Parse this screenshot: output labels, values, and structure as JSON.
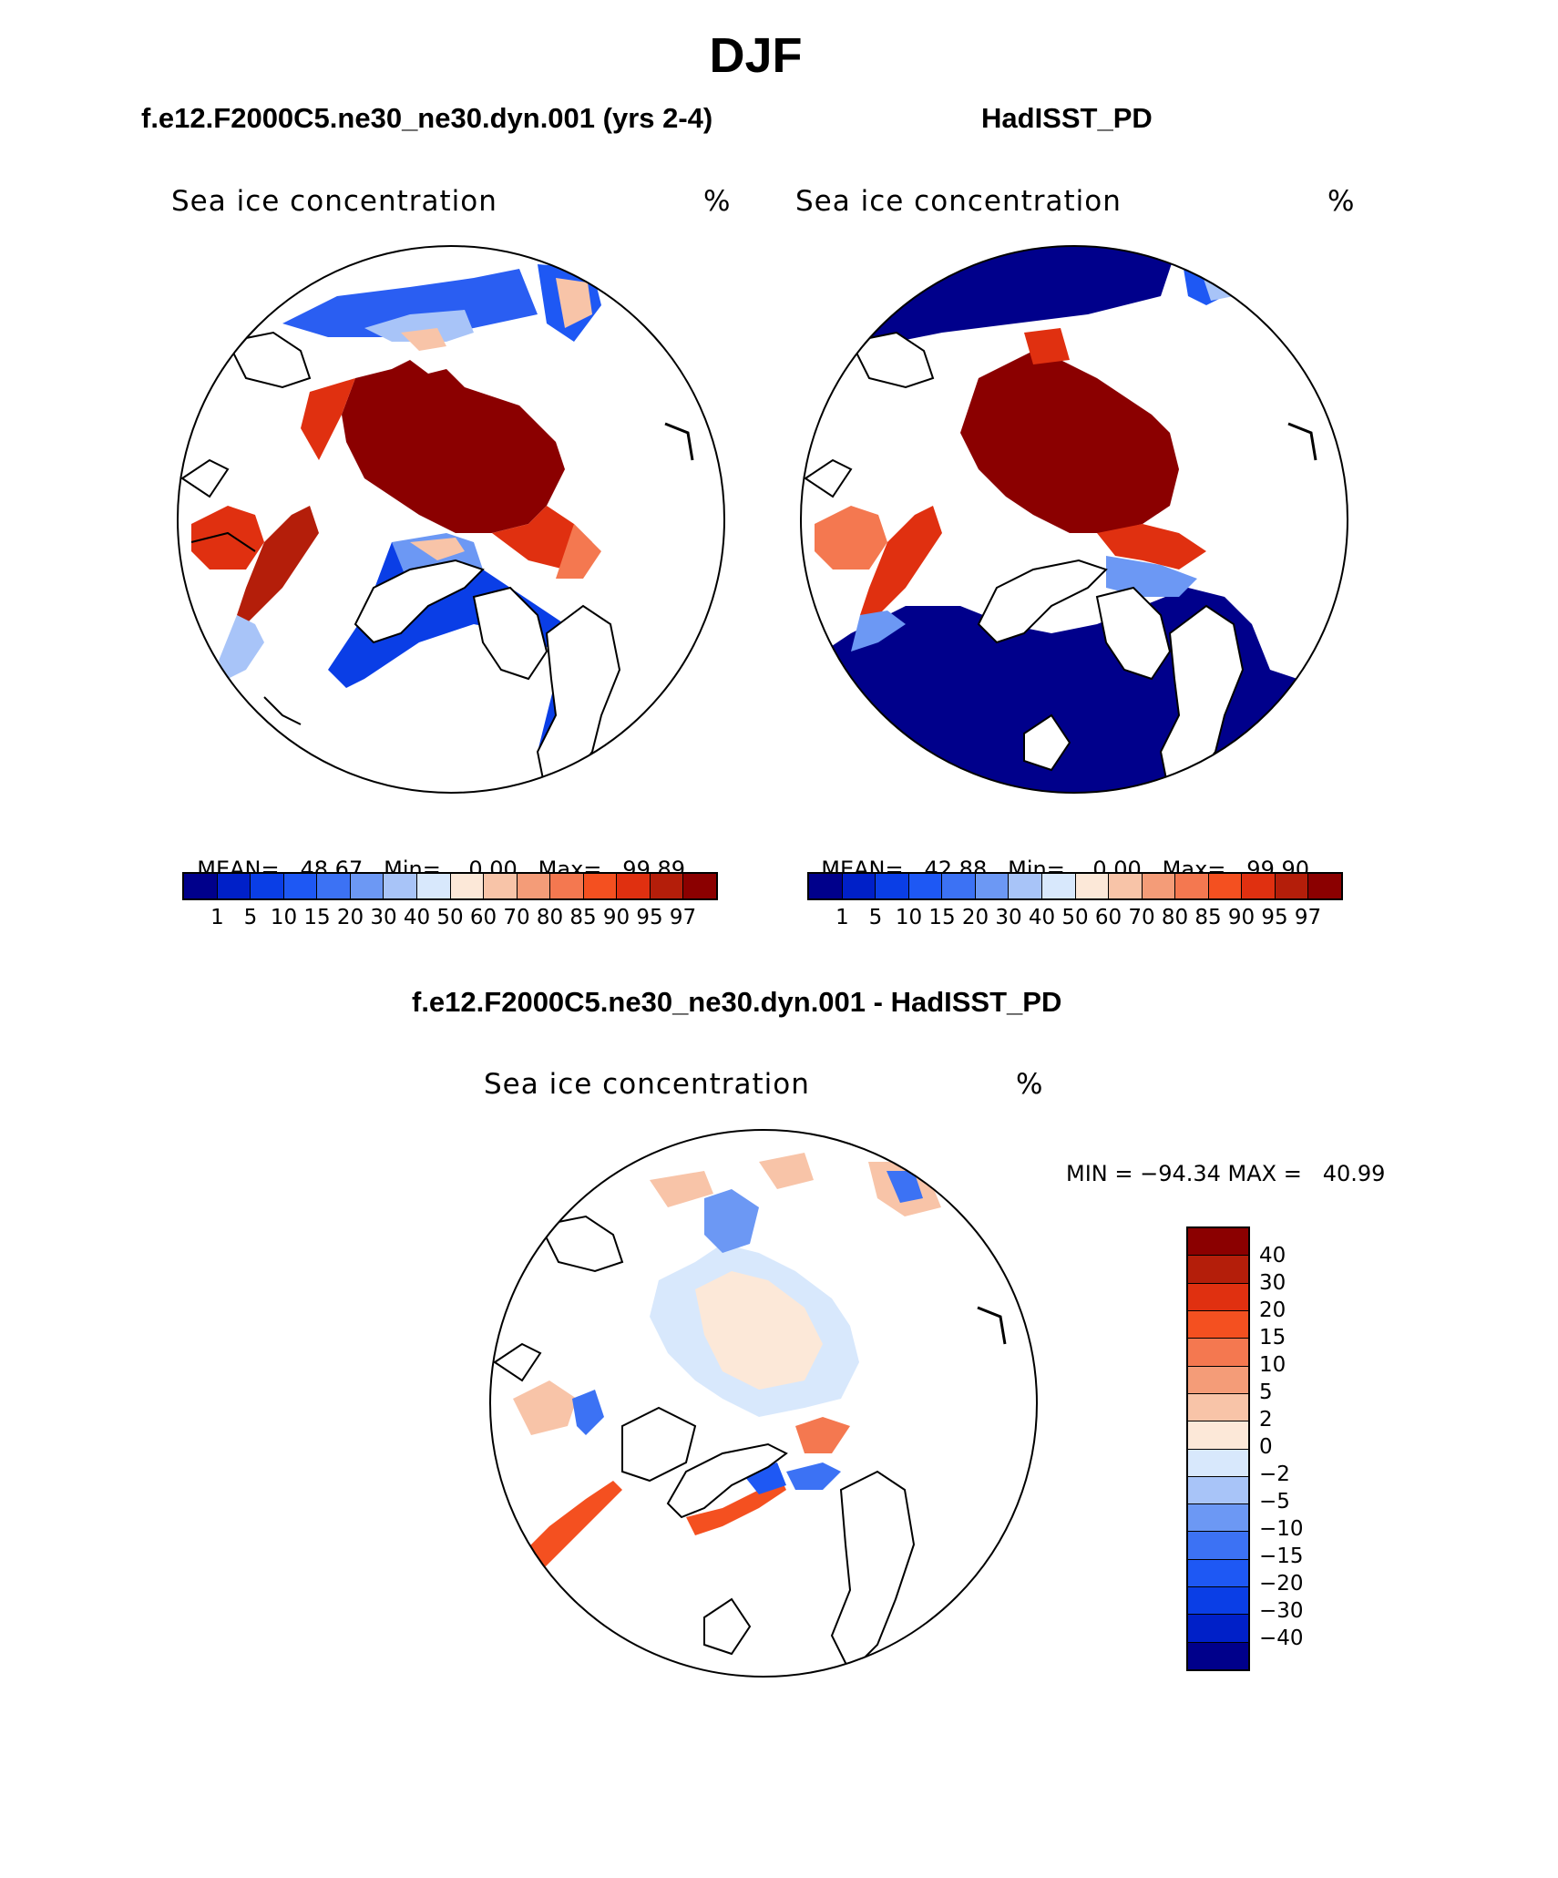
{
  "figure": {
    "title": "DJF"
  },
  "panels": [
    {
      "title": "f.e12.F2000C5.ne30_ne30.dyn.001 (yrs 2-4)",
      "variable": "Sea ice concentration",
      "units": "%",
      "mean": "48.67",
      "min": "0.00",
      "max": "99.89"
    },
    {
      "title": "HadISST_PD",
      "variable": "Sea ice concentration",
      "units": "%",
      "mean": "42.88",
      "min": "0.00",
      "max": "99.90"
    }
  ],
  "stat_labels": {
    "mean": "MEAN=",
    "min": "Min=",
    "max": "Max="
  },
  "diff_panel": {
    "title": "f.e12.F2000C5.ne30_ne30.dyn.001 - HadISST_PD",
    "variable": "Sea ice concentration",
    "units": "%",
    "minmax_text": "MIN = −94.34 MAX =   40.99"
  },
  "colorbar_abs": {
    "labels": [
      "1",
      "5",
      "10",
      "15",
      "20",
      "30",
      "40",
      "50",
      "60",
      "70",
      "80",
      "85",
      "90",
      "95",
      "97"
    ],
    "colors": [
      "#00008b",
      "#0020c8",
      "#0a3ee6",
      "#1e58f4",
      "#3c72f4",
      "#6c98f4",
      "#a8c4f8",
      "#d8e8fc",
      "#fce8d8",
      "#f8c4a8",
      "#f49c78",
      "#f47850",
      "#f45020",
      "#e03010",
      "#b41e0a",
      "#8b0000"
    ]
  },
  "colorbar_diff": {
    "labels": [
      "40",
      "30",
      "20",
      "15",
      "10",
      "5",
      "2",
      "0",
      "−2",
      "−5",
      "−10",
      "−15",
      "−20",
      "−30",
      "−40"
    ],
    "colors": [
      "#8b0000",
      "#b41e0a",
      "#e03010",
      "#f45020",
      "#f47850",
      "#f49c78",
      "#f8c4a8",
      "#fce8d8",
      "#d8e8fc",
      "#a8c4f8",
      "#6c98f4",
      "#3c72f4",
      "#1e58f4",
      "#0a3ee6",
      "#0020c8",
      "#00008b"
    ]
  }
}
